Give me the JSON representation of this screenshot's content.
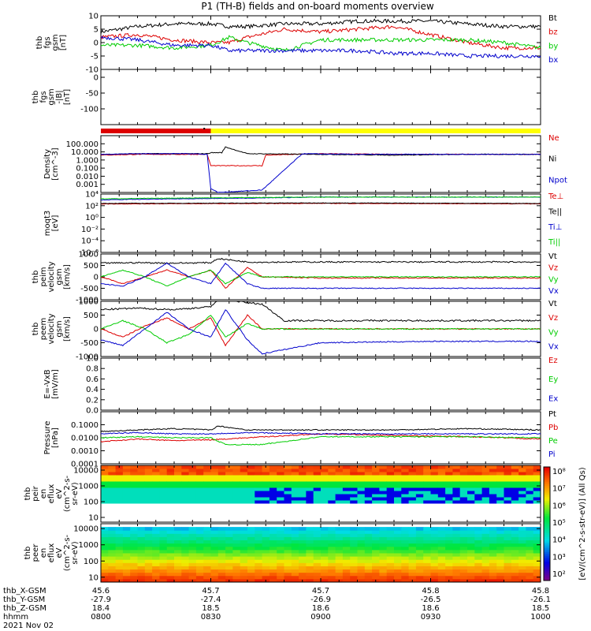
{
  "title": "P1 (TH-B) fields and on-board moments overview",
  "date_label": "2021 Nov 02",
  "colorbar_label": "[eV/(cm^2-s-str-eV)] (All Qs)",
  "colorbar_ticks": [
    "10^8",
    "10^7",
    "10^6",
    "10^5",
    "10^4",
    "10^3",
    "10^2"
  ],
  "ephemeris": {
    "labels": [
      "thb_X-GSM",
      "thb_Y-GSM",
      "thb_Z-GSM",
      "hhmm"
    ],
    "rows": [
      [
        "45.6",
        "45.7",
        "45.7",
        "45.8",
        "45.8"
      ],
      [
        "-27.9",
        "-27.4",
        "-26.9",
        "-26.5",
        "-26.1"
      ],
      [
        "18.4",
        "18.5",
        "18.6",
        "18.6",
        "18.5"
      ],
      [
        "0800",
        "0830",
        "0900",
        "0930",
        "1000"
      ]
    ]
  },
  "chart_data": [
    {
      "type": "line",
      "panel": "fgs_gsm",
      "ylabel": [
        "thb",
        "fgs",
        "gsm",
        "[nT]"
      ],
      "ylim": [
        -10,
        10
      ],
      "yticks": [
        "10",
        "5",
        "0",
        "-5",
        "-10"
      ],
      "series": [
        {
          "name": "Bt",
          "color": "#000000",
          "x": [
            0,
            10,
            20,
            30,
            35,
            40,
            50,
            60,
            70,
            80,
            90,
            100,
            110,
            120
          ],
          "values": [
            4,
            6,
            7,
            7,
            6,
            6,
            7,
            7,
            8,
            8,
            8,
            7,
            6,
            6
          ]
        },
        {
          "name": "bz",
          "color": "#dd0000",
          "x": [
            0,
            10,
            20,
            30,
            35,
            40,
            50,
            60,
            70,
            80,
            90,
            100,
            110,
            120
          ],
          "values": [
            2,
            3,
            1,
            0,
            0,
            2,
            5,
            4,
            5,
            6,
            3,
            0,
            -2,
            -2
          ]
        },
        {
          "name": "by",
          "color": "#00cc00",
          "x": [
            0,
            10,
            20,
            30,
            35,
            40,
            50,
            60,
            70,
            80,
            90,
            100,
            110,
            120
          ],
          "values": [
            -1,
            -1,
            -2,
            -1,
            2,
            0,
            -3,
            1,
            1,
            1,
            1,
            1,
            0,
            -2
          ]
        },
        {
          "name": "bx",
          "color": "#0000cc",
          "x": [
            0,
            10,
            20,
            30,
            35,
            40,
            50,
            60,
            70,
            80,
            90,
            100,
            110,
            120
          ],
          "values": [
            2,
            1,
            -1,
            -1,
            -3,
            -3,
            -3,
            -3,
            -3,
            -4,
            -4,
            -5,
            -5,
            -5
          ]
        }
      ]
    },
    {
      "type": "line",
      "panel": "fgs_gsm_dB",
      "ylabel": [
        "thb",
        "fgs",
        "gsm",
        "-|B|",
        "[nT]"
      ],
      "ylim": [
        -150,
        25
      ],
      "yticks": [
        "0",
        "-50",
        "-100"
      ],
      "series": []
    },
    {
      "type": "bar",
      "panel": "mode_bar",
      "segments": [
        {
          "from": 0,
          "to": 30,
          "color": "#dd0000"
        },
        {
          "from": 30,
          "to": 120,
          "color": "#ffff00"
        }
      ]
    },
    {
      "type": "line",
      "panel": "density",
      "yscale": "log",
      "ylabel": [
        "Density",
        "[cm^-3]"
      ],
      "ylim": [
        0.0001,
        1000
      ],
      "yticks": [
        "100.000",
        "10.000",
        "1.000",
        "0.100",
        "0.010",
        "0.001"
      ],
      "series": [
        {
          "name": "Ne",
          "color": "#dd0000",
          "x": [
            0,
            10,
            20,
            29,
            30,
            35,
            44,
            45,
            60,
            80,
            100,
            120
          ],
          "values": [
            4,
            5,
            5,
            5,
            0.2,
            0.2,
            0.2,
            4,
            6,
            5,
            5,
            5
          ]
        },
        {
          "name": "Ni",
          "color": "#000000",
          "x": [
            0,
            10,
            20,
            29,
            30,
            33,
            34,
            40,
            60,
            80,
            100,
            120
          ],
          "values": [
            5,
            6,
            6,
            6,
            8,
            8,
            40,
            6,
            5,
            4,
            5,
            5
          ]
        },
        {
          "name": "Npot",
          "color": "#0000cc",
          "x": [
            0,
            10,
            20,
            25,
            29,
            30,
            32,
            44,
            55,
            70,
            90,
            120
          ],
          "values": [
            5,
            6,
            6,
            6,
            5,
            0.0003,
            0.0001,
            0.0002,
            6,
            5,
            5,
            5
          ]
        }
      ]
    },
    {
      "type": "line",
      "panel": "temperature",
      "yscale": "log",
      "ylabel": [
        "moqt3",
        "[eV]"
      ],
      "ylim": [
        1e-06,
        10000
      ],
      "yticks": [
        "10^4",
        "10^2",
        "10^0",
        "10^-2",
        "10^-4",
        "10^-6"
      ],
      "series": [
        {
          "name": "Te⊥",
          "color": "#dd0000",
          "x": [
            0,
            20,
            40,
            60,
            80,
            100,
            120
          ],
          "values": [
            200,
            220,
            230,
            250,
            230,
            220,
            210
          ]
        },
        {
          "name": "Te||",
          "color": "#000000",
          "x": [
            0,
            20,
            40,
            60,
            80,
            100,
            120
          ],
          "values": [
            250,
            260,
            280,
            300,
            280,
            260,
            250
          ]
        },
        {
          "name": "Ti⊥",
          "color": "#0000cc",
          "x": [
            0,
            20,
            40,
            60,
            80,
            100,
            120
          ],
          "values": [
            1000,
            1500,
            2000,
            3000,
            3000,
            3000,
            3000
          ]
        },
        {
          "name": "Ti||",
          "color": "#00cc00",
          "x": [
            0,
            20,
            40,
            60,
            80,
            100,
            120
          ],
          "values": [
            1500,
            2000,
            2500,
            3000,
            3000,
            3000,
            3000
          ]
        }
      ]
    },
    {
      "type": "line",
      "panel": "peim_velocity",
      "ylabel": [
        "thb",
        "peim",
        "velocity",
        "gsm",
        "[km/s]"
      ],
      "ylim": [
        -1000,
        1000
      ],
      "yticks": [
        "1000",
        "500",
        "0",
        "-500",
        "-1000"
      ],
      "series": [
        {
          "name": "Vt",
          "color": "#000000",
          "x": [
            0,
            10,
            20,
            30,
            32,
            40,
            44,
            50,
            70,
            90,
            120
          ],
          "values": [
            600,
            620,
            600,
            620,
            800,
            650,
            640,
            650,
            650,
            650,
            650
          ]
        },
        {
          "name": "Vz",
          "color": "#dd0000",
          "x": [
            0,
            6,
            12,
            18,
            24,
            30,
            34,
            40,
            44,
            60,
            90,
            120
          ],
          "values": [
            0,
            -300,
            0,
            300,
            0,
            300,
            -500,
            400,
            0,
            -50,
            -50,
            -50
          ]
        },
        {
          "name": "Vy",
          "color": "#00cc00",
          "x": [
            0,
            6,
            12,
            18,
            24,
            30,
            34,
            40,
            44,
            60,
            90,
            120
          ],
          "values": [
            0,
            300,
            0,
            -400,
            0,
            300,
            -300,
            200,
            0,
            0,
            0,
            0
          ]
        },
        {
          "name": "Vx",
          "color": "#0000cc",
          "x": [
            0,
            6,
            12,
            18,
            24,
            30,
            34,
            40,
            44,
            60,
            90,
            120
          ],
          "values": [
            -300,
            -400,
            0,
            600,
            0,
            -300,
            600,
            -300,
            -500,
            -500,
            -500,
            -500
          ]
        }
      ]
    },
    {
      "type": "line",
      "panel": "peem_velocity",
      "ylabel": [
        "thb",
        "peem",
        "velocity",
        "gsm",
        "[km/s]"
      ],
      "ylim": [
        -1000,
        1000
      ],
      "yticks": [
        "1000",
        "500",
        "0",
        "-500",
        "-1000"
      ],
      "series": [
        {
          "name": "Vt",
          "color": "#000000",
          "x": [
            0,
            10,
            20,
            30,
            32,
            40,
            44,
            50,
            70,
            90,
            120
          ],
          "values": [
            700,
            750,
            700,
            800,
            1100,
            950,
            900,
            300,
            300,
            300,
            300
          ]
        },
        {
          "name": "Vz",
          "color": "#dd0000",
          "x": [
            0,
            6,
            12,
            18,
            24,
            30,
            34,
            40,
            44,
            60,
            90,
            120
          ],
          "values": [
            0,
            -300,
            100,
            400,
            0,
            400,
            -600,
            500,
            0,
            0,
            0,
            0
          ]
        },
        {
          "name": "Vy",
          "color": "#00cc00",
          "x": [
            0,
            6,
            12,
            18,
            24,
            30,
            34,
            40,
            44,
            60,
            90,
            120
          ],
          "values": [
            0,
            300,
            0,
            -500,
            -200,
            500,
            -300,
            200,
            0,
            0,
            0,
            0
          ]
        },
        {
          "name": "Vx",
          "color": "#0000cc",
          "x": [
            0,
            6,
            12,
            18,
            24,
            30,
            34,
            40,
            44,
            60,
            90,
            120
          ],
          "values": [
            -400,
            -600,
            0,
            600,
            0,
            -300,
            700,
            -400,
            -900,
            -500,
            -450,
            -450
          ]
        }
      ]
    },
    {
      "type": "line",
      "panel": "efield",
      "ylabel": [
        "E=-VxB",
        "[mV/m]"
      ],
      "ylim": [
        0,
        1
      ],
      "yticks": [
        "1.0",
        "0.8",
        "0.6",
        "0.4",
        "0.2",
        "0.0"
      ],
      "series": [
        {
          "name": "Ez",
          "color": "#dd0000",
          "x": [],
          "values": []
        },
        {
          "name": "Ey",
          "color": "#00cc00",
          "x": [],
          "values": []
        },
        {
          "name": "Ex",
          "color": "#0000cc",
          "x": [],
          "values": []
        }
      ]
    },
    {
      "type": "line",
      "panel": "pressure",
      "yscale": "log",
      "ylabel": [
        "Pressure",
        "[nPa]"
      ],
      "ylim": [
        0.0001,
        1
      ],
      "yticks": [
        "0.1000",
        "0.0100",
        "0.0010",
        "0.0001"
      ],
      "series": [
        {
          "name": "Pt",
          "color": "#000000",
          "x": [
            0,
            10,
            20,
            30,
            32,
            40,
            60,
            80,
            100,
            120
          ],
          "values": [
            0.03,
            0.04,
            0.05,
            0.04,
            0.08,
            0.04,
            0.04,
            0.04,
            0.05,
            0.04
          ]
        },
        {
          "name": "Pb",
          "color": "#dd0000",
          "x": [
            0,
            10,
            20,
            30,
            40,
            60,
            80,
            100,
            120
          ],
          "values": [
            0.005,
            0.008,
            0.006,
            0.007,
            0.01,
            0.02,
            0.015,
            0.012,
            0.008
          ]
        },
        {
          "name": "Pe",
          "color": "#00cc00",
          "x": [
            0,
            10,
            20,
            30,
            34,
            44,
            60,
            80,
            100,
            120
          ],
          "values": [
            0.01,
            0.012,
            0.01,
            0.01,
            0.003,
            0.003,
            0.012,
            0.012,
            0.012,
            0.01
          ]
        },
        {
          "name": "Pi",
          "color": "#0000cc",
          "x": [
            0,
            10,
            20,
            30,
            40,
            60,
            80,
            100,
            120
          ],
          "values": [
            0.02,
            0.025,
            0.02,
            0.02,
            0.025,
            0.02,
            0.02,
            0.02,
            0.02
          ]
        }
      ]
    },
    {
      "type": "heatmap",
      "panel": "peir_spectrogram",
      "yscale": "log",
      "ylabel": [
        "thb",
        "peir",
        "en",
        "eflux",
        "eV",
        "(cm^2-s-",
        "sr-eV)"
      ],
      "ylim": [
        5,
        20000
      ],
      "yticks": [
        "10000",
        "1000",
        "100",
        "10"
      ]
    },
    {
      "type": "heatmap",
      "panel": "peer_spectrogram",
      "yscale": "log",
      "ylabel": [
        "thb",
        "peer",
        "en",
        "eflux",
        "eV",
        "(cm^2-s-",
        "sr-eV)"
      ],
      "ylim": [
        5,
        20000
      ],
      "yticks": [
        "10000",
        "1000",
        "100",
        "10"
      ]
    }
  ]
}
